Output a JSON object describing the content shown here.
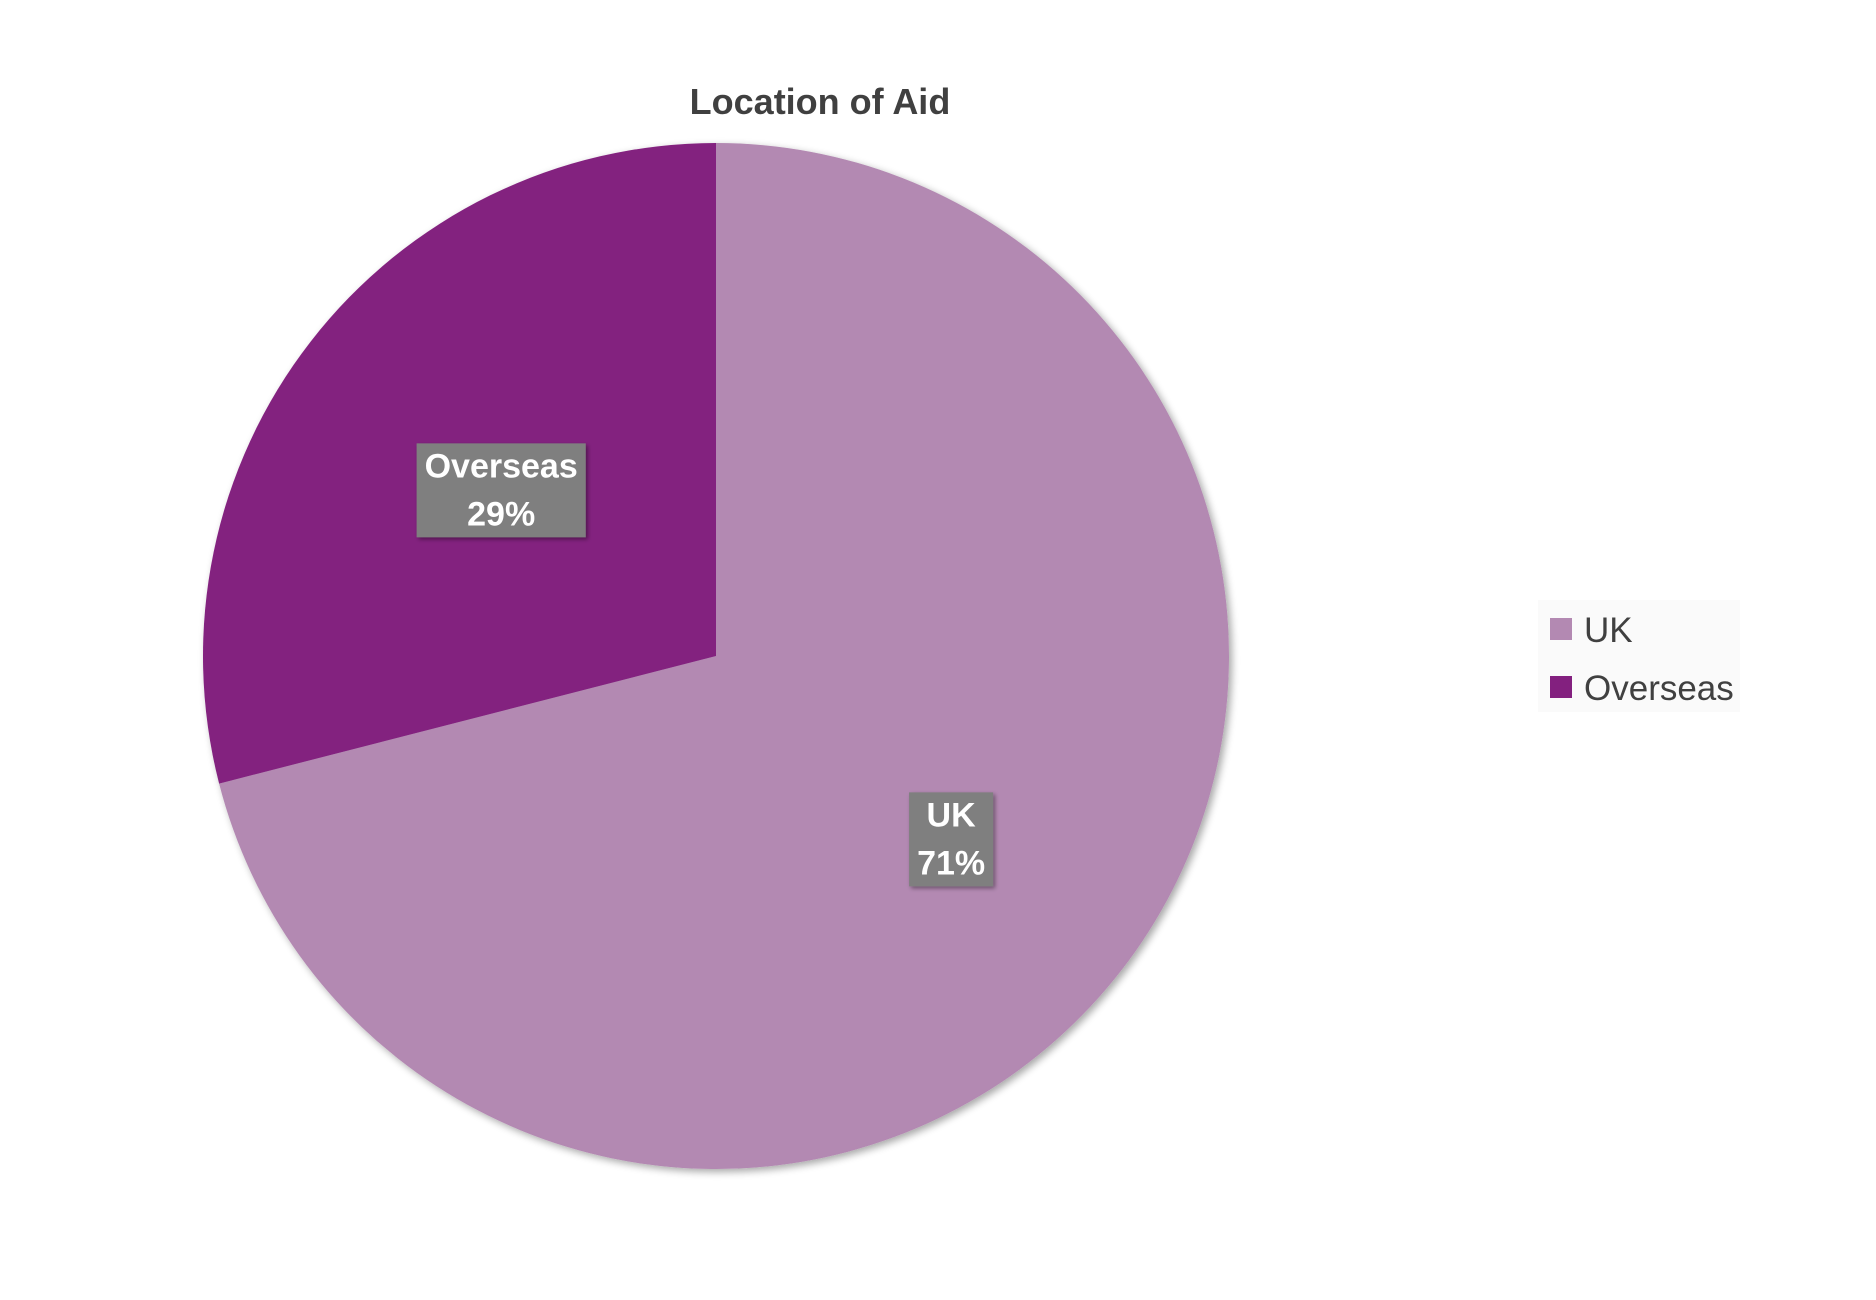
{
  "chart_data": {
    "type": "pie",
    "title": "Location of Aid",
    "slices": [
      {
        "label": "UK",
        "value": 71,
        "value_label": "71%",
        "color": "#b389b2"
      },
      {
        "label": "Overseas",
        "value": 29,
        "value_label": "29%",
        "color": "#83207f"
      }
    ],
    "start_angle_deg": 0,
    "direction": "clockwise",
    "legend": {
      "position": "right",
      "entries": [
        "UK",
        "Overseas"
      ]
    },
    "data_label_background": "#7f7f7f"
  }
}
